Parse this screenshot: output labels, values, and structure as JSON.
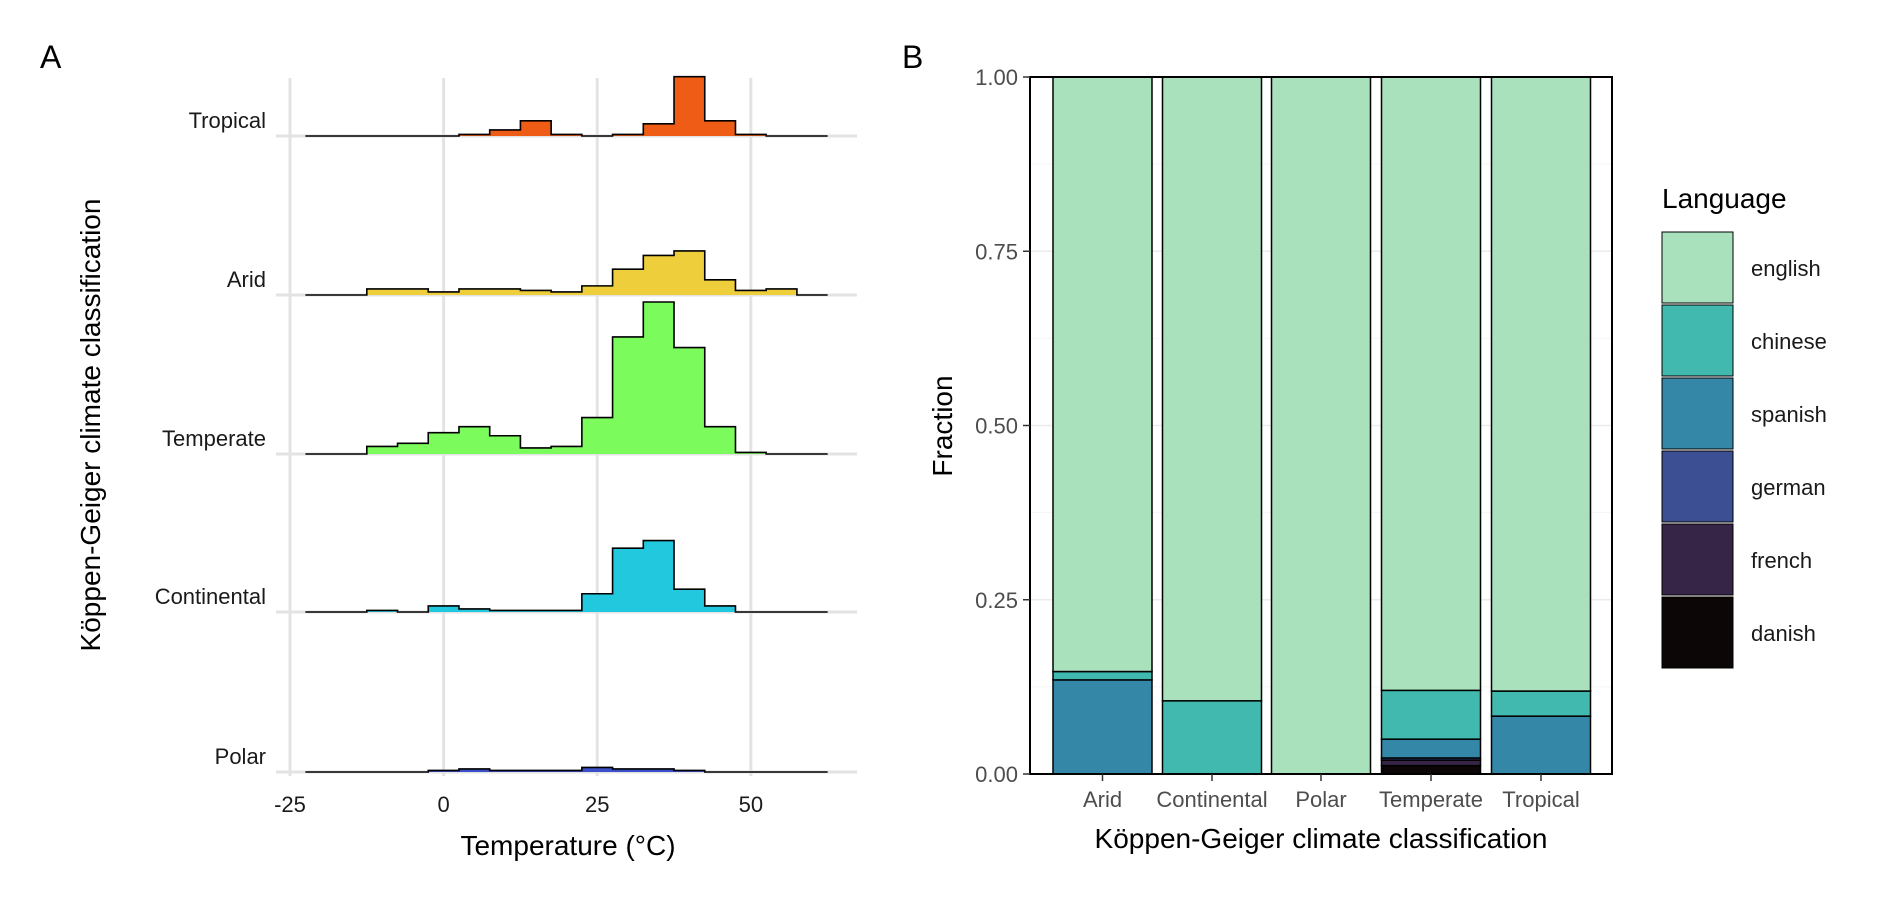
{
  "chart_data": [
    {
      "panel": "A",
      "type": "ridgeline-histogram",
      "xlabel": "Temperature (°C)",
      "ylabel": "Köppen-Geiger climate classification",
      "x_ticks": [
        "-25",
        "0",
        "25",
        "50"
      ],
      "x_tick_values": [
        -25,
        0,
        25,
        50
      ],
      "xlim": [
        -25,
        65
      ],
      "bin_edges": [
        -22.5,
        -17.5,
        -12.5,
        -7.5,
        -2.5,
        2.5,
        7.5,
        12.5,
        17.5,
        22.5,
        27.5,
        32.5,
        37.5,
        42.5,
        47.5,
        52.5,
        57.5,
        62.5
      ],
      "grid": true,
      "series": [
        {
          "name": "Polar",
          "color": "#3B4FC8",
          "values": [
            0,
            0,
            0,
            0,
            0.01,
            0.02,
            0.01,
            0.01,
            0.01,
            0.03,
            0.02,
            0.02,
            0.01,
            0,
            0,
            0,
            0
          ]
        },
        {
          "name": "Continental",
          "color": "#22C9DE",
          "values": [
            0,
            0,
            0.01,
            0,
            0.04,
            0.02,
            0.01,
            0.01,
            0.01,
            0.12,
            0.42,
            0.47,
            0.15,
            0.04,
            0,
            0,
            0
          ]
        },
        {
          "name": "Temperate",
          "color": "#7BFC5C",
          "values": [
            0,
            0,
            0.05,
            0.07,
            0.14,
            0.18,
            0.12,
            0.04,
            0.05,
            0.24,
            0.77,
            1.0,
            0.7,
            0.18,
            0.01,
            0,
            0
          ]
        },
        {
          "name": "Arid",
          "color": "#EECE3A",
          "values": [
            0,
            0,
            0.04,
            0.04,
            0.02,
            0.04,
            0.04,
            0.03,
            0.02,
            0.06,
            0.17,
            0.26,
            0.29,
            0.1,
            0.03,
            0.04,
            0
          ]
        },
        {
          "name": "Tropical",
          "color": "#EF5C15",
          "values": [
            0,
            0,
            0,
            0,
            0,
            0.01,
            0.04,
            0.1,
            0.01,
            0,
            0.01,
            0.08,
            0.39,
            0.1,
            0.01,
            0,
            0
          ]
        }
      ]
    },
    {
      "panel": "B",
      "type": "bar",
      "stacked": true,
      "xlabel": "Köppen-Geiger climate classification",
      "ylabel": "Fraction",
      "ylim": [
        0,
        1
      ],
      "y_ticks": [
        "0.00",
        "0.25",
        "0.50",
        "0.75",
        "1.00"
      ],
      "y_tick_values": [
        0,
        0.25,
        0.5,
        0.75,
        1
      ],
      "categories": [
        "Arid",
        "Continental",
        "Polar",
        "Temperate",
        "Tropical"
      ],
      "legend_title": "Language",
      "legend_position": "right",
      "series": [
        {
          "name": "danish",
          "color": "#0C0606",
          "values": [
            0,
            0,
            0,
            0.012,
            0
          ]
        },
        {
          "name": "french",
          "color": "#372548",
          "values": [
            0,
            0,
            0,
            0.008,
            0
          ]
        },
        {
          "name": "german",
          "color": "#3D4F93",
          "values": [
            0,
            0,
            0,
            0.003,
            0
          ]
        },
        {
          "name": "spanish",
          "color": "#3487A6",
          "values": [
            0.135,
            0,
            0,
            0.027,
            0.083
          ]
        },
        {
          "name": "chinese",
          "color": "#42B9AE",
          "values": [
            0.012,
            0.105,
            0,
            0.07,
            0.036
          ]
        },
        {
          "name": "english",
          "color": "#A8E1BC",
          "values": [
            0.853,
            0.895,
            1.0,
            0.88,
            0.881
          ]
        }
      ]
    }
  ]
}
